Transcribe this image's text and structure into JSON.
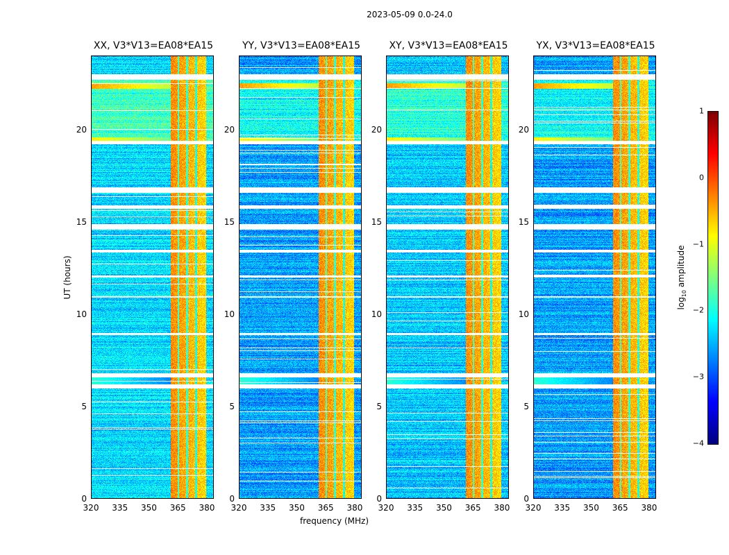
{
  "chart_data": {
    "type": "heatmap",
    "title": "2023-05-09 0.0-24.0",
    "xlabel": "frequency (MHz)",
    "ylabel": "UT (hours)",
    "xlim": [
      320,
      383.6
    ],
    "ylim": [
      0,
      24
    ],
    "x_ticks": [
      "320",
      "335",
      "350",
      "365",
      "380"
    ],
    "x_tick_values": [
      320,
      335,
      350,
      365,
      380
    ],
    "y_ticks": [
      "0",
      "5",
      "10",
      "15",
      "20"
    ],
    "y_tick_values": [
      0,
      5,
      10,
      15,
      20
    ],
    "colorbar": {
      "label": "log10 amplitude",
      "label_main": "log",
      "label_sub": "10",
      "label_tail": " amplitude",
      "range": [
        -4,
        1
      ],
      "ticks": [
        "1",
        "0",
        "−1",
        "−2",
        "−3",
        "−4"
      ],
      "tick_values": [
        1,
        0,
        -1,
        -2,
        -3,
        -4
      ],
      "colormap": "jet"
    },
    "panels": [
      {
        "title": "XX, V3*V13=EA08*EA15",
        "background_level": -2.3
      },
      {
        "title": "YY, V3*V13=EA08*EA15",
        "background_level": -2.6
      },
      {
        "title": "XY, V3*V13=EA08*EA15",
        "background_level": -2.4
      },
      {
        "title": "YX, V3*V13=EA08*EA15",
        "background_level": -2.6
      }
    ],
    "rfi_band_mhz": [
      361,
      379.5
    ],
    "rfi_level": -0.3,
    "flagged_gap_hours": [
      [
        6.0,
        6.2
      ],
      [
        6.6,
        6.8
      ],
      [
        8.9,
        9.0
      ],
      [
        10.9,
        11.0
      ],
      [
        12.0,
        12.1
      ],
      [
        13.35,
        13.5
      ],
      [
        14.6,
        14.9
      ],
      [
        15.7,
        15.9
      ],
      [
        16.6,
        16.9
      ],
      [
        19.2,
        19.4
      ],
      [
        22.7,
        23.0
      ]
    ],
    "bright_events_hours": [
      [
        19.3,
        19.6,
        -0.8
      ],
      [
        22.2,
        22.5,
        -0.4
      ],
      [
        6.2,
        6.6,
        -1.9
      ]
    ]
  }
}
